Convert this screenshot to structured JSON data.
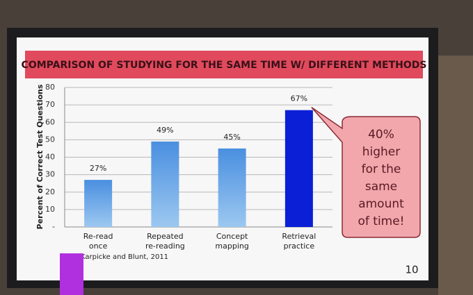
{
  "chart_data": {
    "type": "bar",
    "title": "COMPARISON OF STUDYING FOR THE SAME TIME W/ DIFFERENT METHODS",
    "y_label": "Percent of Correct Test Questions",
    "categories": [
      "Re-read\nonce",
      "Repeated\nre-reading",
      "Concept\nmapping",
      "Retrieval\npractice"
    ],
    "values": [
      27,
      49,
      45,
      67
    ],
    "value_labels": [
      "27%",
      "49%",
      "45%",
      "67%"
    ],
    "colors": [
      "#5a9ee0",
      "#5a9ee0",
      "#5a9ee0",
      "#0a1fd6"
    ],
    "ylim": [
      0,
      80
    ],
    "yticks": [
      {
        "value": 0,
        "label": "-"
      },
      10,
      20,
      30,
      40,
      50,
      60,
      70,
      80
    ],
    "grid": true,
    "annotation": "40%\nhigher\nfor the\nsame\namount\nof time!",
    "source": "Karpicke and Blunt, 2011",
    "page_number": "10"
  }
}
